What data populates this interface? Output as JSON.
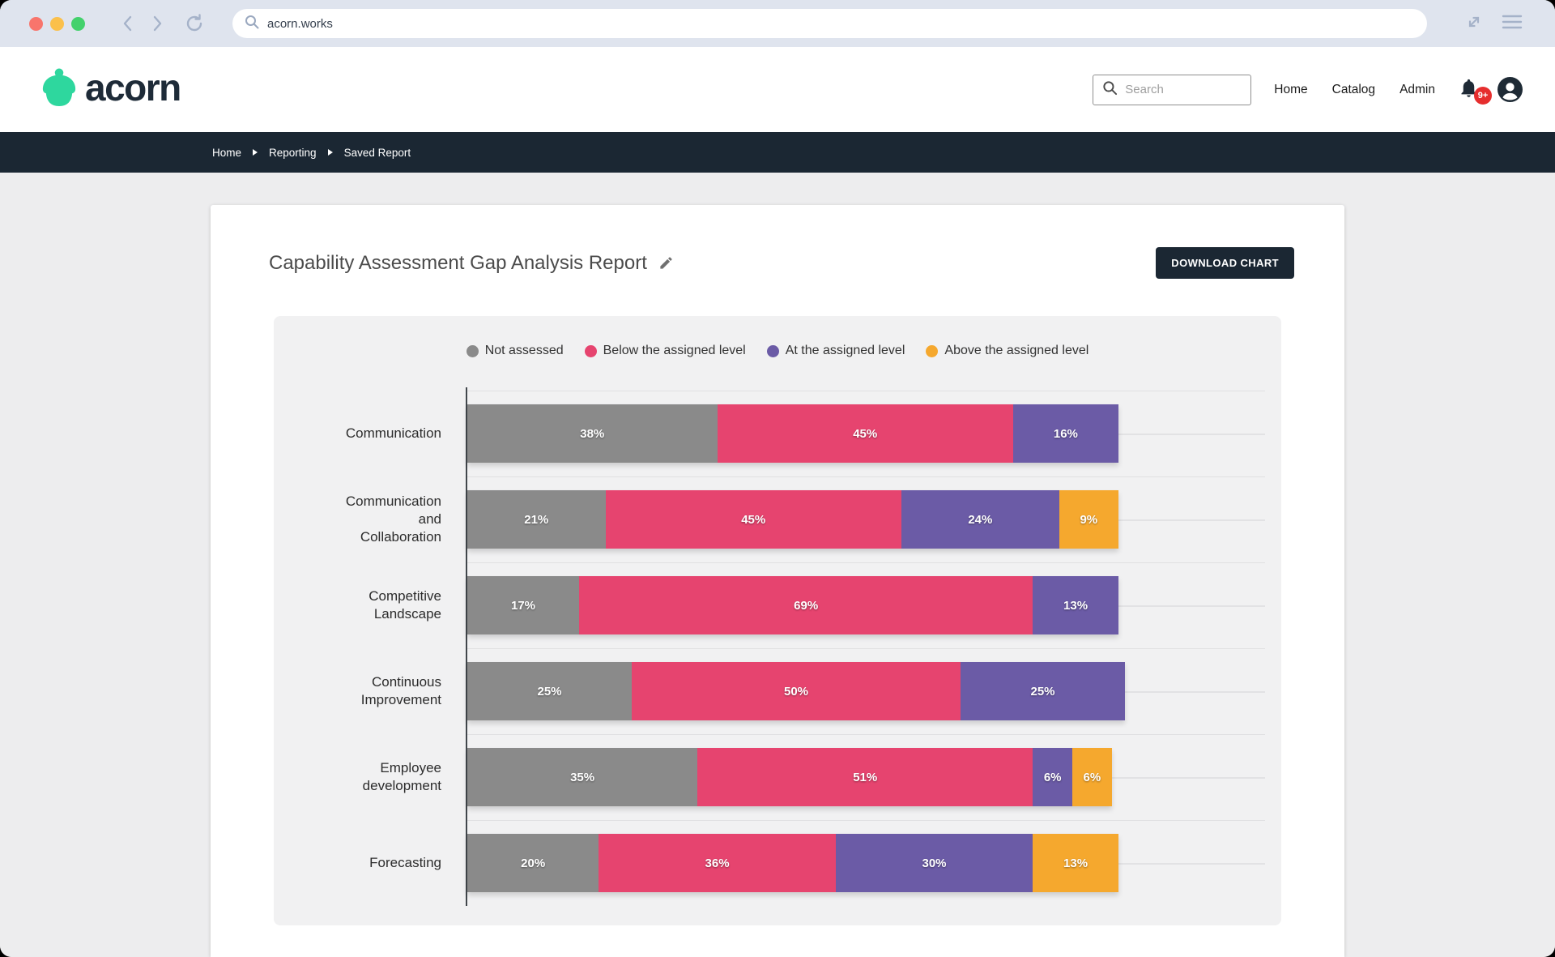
{
  "window": {
    "url": "acorn.works"
  },
  "header": {
    "logo_text": "acorn",
    "search_placeholder": "Search",
    "nav": [
      {
        "label": "Home"
      },
      {
        "label": "Catalog"
      },
      {
        "label": "Admin"
      }
    ],
    "notification_badge": "9+"
  },
  "breadcrumb": {
    "items": [
      {
        "label": "Home"
      },
      {
        "label": "Reporting"
      },
      {
        "label": "Saved Report"
      }
    ]
  },
  "report": {
    "title": "Capability Assessment Gap Analysis Report",
    "download_button_label": "DOWNLOAD CHART"
  },
  "colors": {
    "brand_green": "#2ed79e",
    "dark_navy": "#1b2733",
    "panel_bg": "#f1f1f2",
    "badge_red": "#e62e2e"
  },
  "chart_data": {
    "type": "bar",
    "orientation": "horizontal",
    "stacked": true,
    "value_unit": "%",
    "xlim": [
      0,
      100
    ],
    "grid": true,
    "legend_position": "top",
    "categories": [
      "Communication",
      "Communication and Collaboration",
      "Competitive Landscape",
      "Continuous Improvement",
      "Employee development",
      "Forecasting"
    ],
    "category_label_lines": [
      [
        "Communication"
      ],
      [
        "Communication",
        "and",
        "Collaboration"
      ],
      [
        "Competitive",
        "Landscape"
      ],
      [
        "Continuous",
        "Improvement"
      ],
      [
        "Employee",
        "development"
      ],
      [
        "Forecasting"
      ]
    ],
    "series": [
      {
        "name": "Not assessed",
        "color": "#8a8a8a",
        "values": [
          38,
          21,
          17,
          25,
          35,
          20
        ]
      },
      {
        "name": "Below the assigned level",
        "color": "#e6446f",
        "values": [
          45,
          45,
          69,
          50,
          51,
          36
        ]
      },
      {
        "name": "At the assigned level",
        "color": "#6b5ba6",
        "values": [
          16,
          24,
          13,
          25,
          6,
          30
        ]
      },
      {
        "name": "Above the assigned level",
        "color": "#f5a82e",
        "values": [
          0,
          9,
          0,
          0,
          6,
          13
        ]
      }
    ]
  }
}
